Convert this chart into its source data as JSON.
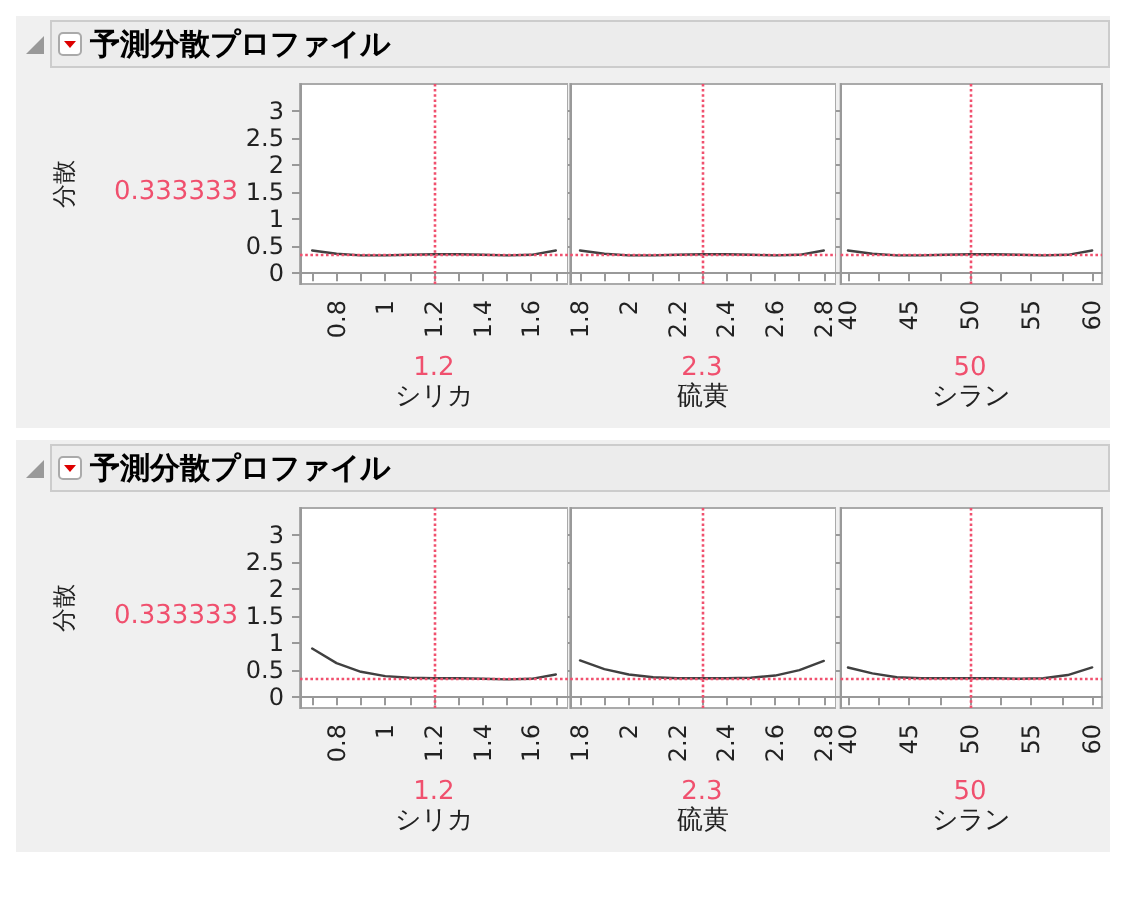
{
  "chart_data": [
    {
      "type": "line",
      "title": "予測分散プロファイル",
      "xlabel": "シリカ",
      "ylabel": "分散",
      "x": [
        0.7,
        0.8,
        0.9,
        1.0,
        1.1,
        1.2,
        1.3,
        1.4,
        1.5,
        1.6,
        1.7
      ],
      "series": [
        {
          "color": "#404040",
          "values": [
            0.42,
            0.36,
            0.33,
            0.33,
            0.34,
            0.35,
            0.35,
            0.34,
            0.33,
            0.34,
            0.42
          ]
        }
      ],
      "xlim": [
        0.65,
        1.75
      ],
      "xticks": [
        {
          "value": 0.7,
          "label": null
        },
        0.8,
        {
          "value": 0.9,
          "label": null
        },
        1,
        {
          "value": 1.1,
          "label": null
        },
        1.2,
        {
          "value": 1.3,
          "label": null
        },
        1.4,
        {
          "value": 1.5,
          "label": null
        },
        1.6,
        {
          "value": 1.7,
          "label": null
        }
      ],
      "ylim": [
        -0.2,
        3.5
      ],
      "yticks": [
        0,
        0.5,
        1,
        1.5,
        2,
        2.5,
        3
      ],
      "grid": false,
      "marker": "none",
      "line_style": "solid",
      "ref_lines": [
        {
          "axis": "x",
          "value": 1.2,
          "label": "1.2",
          "color": "#f0506e",
          "line_style": "dotted"
        },
        {
          "axis": "y",
          "value": 0.333333,
          "label": "0.333333",
          "color": "#f0506e",
          "line_style": "dotted"
        }
      ]
    },
    {
      "type": "line",
      "xlabel": "硫黄",
      "x": [
        1.8,
        1.9,
        2.0,
        2.1,
        2.2,
        2.3,
        2.4,
        2.5,
        2.6,
        2.7,
        2.8
      ],
      "series": [
        {
          "color": "#404040",
          "values": [
            0.42,
            0.36,
            0.33,
            0.33,
            0.34,
            0.35,
            0.35,
            0.34,
            0.33,
            0.34,
            0.42
          ]
        }
      ],
      "xlim": [
        1.76,
        2.85
      ],
      "xticks": [
        1.8,
        {
          "value": 1.9,
          "label": null
        },
        2,
        {
          "value": 2.1,
          "label": null
        },
        2.2,
        {
          "value": 2.3,
          "label": null
        },
        2.4,
        {
          "value": 2.5,
          "label": null
        },
        2.6,
        {
          "value": 2.7,
          "label": null
        },
        2.8
      ],
      "ylim": [
        -0.2,
        3.5
      ],
      "yticks": [
        0,
        0.5,
        1,
        1.5,
        2,
        2.5,
        3
      ],
      "tick_labels": "x",
      "grid": false,
      "marker": "none",
      "line_style": "solid",
      "ref_lines": [
        {
          "axis": "x",
          "value": 2.3,
          "label": "2.3",
          "color": "#f0506e",
          "line_style": "dotted"
        },
        {
          "axis": "y",
          "value": 0.333333,
          "label": null,
          "color": "#f0506e",
          "line_style": "dotted"
        }
      ]
    },
    {
      "type": "line",
      "xlabel": "シラン",
      "x": [
        40,
        42,
        44,
        46,
        48,
        50,
        52,
        54,
        56,
        58,
        60
      ],
      "series": [
        {
          "color": "#404040",
          "values": [
            0.42,
            0.36,
            0.33,
            0.33,
            0.34,
            0.35,
            0.35,
            0.34,
            0.33,
            0.34,
            0.42
          ]
        }
      ],
      "xlim": [
        39.4,
        60.8
      ],
      "xticks": [
        40,
        {
          "value": 42.5,
          "label": null
        },
        45,
        {
          "value": 47.5,
          "label": null
        },
        50,
        {
          "value": 52.5,
          "label": null
        },
        55,
        {
          "value": 57.5,
          "label": null
        },
        60
      ],
      "ylim": [
        -0.2,
        3.5
      ],
      "yticks": [
        0,
        0.5,
        1,
        1.5,
        2,
        2.5,
        3
      ],
      "tick_labels": "x",
      "grid": false,
      "marker": "none",
      "line_style": "solid",
      "ref_lines": [
        {
          "axis": "x",
          "value": 50,
          "label": "50",
          "color": "#f0506e",
          "line_style": "dotted"
        },
        {
          "axis": "y",
          "value": 0.333333,
          "label": null,
          "color": "#f0506e",
          "line_style": "dotted"
        }
      ]
    },
    {
      "type": "line",
      "title": "予測分散プロファイル",
      "xlabel": "シリカ",
      "ylabel": "分散",
      "x": [
        0.7,
        0.8,
        0.9,
        1.0,
        1.1,
        1.2,
        1.3,
        1.4,
        1.5,
        1.6,
        1.7
      ],
      "series": [
        {
          "color": "#404040",
          "values": [
            0.9,
            0.63,
            0.47,
            0.39,
            0.36,
            0.35,
            0.35,
            0.34,
            0.33,
            0.34,
            0.42
          ]
        }
      ],
      "xlim": [
        0.65,
        1.75
      ],
      "xticks": [
        {
          "value": 0.7,
          "label": null
        },
        0.8,
        {
          "value": 0.9,
          "label": null
        },
        1,
        {
          "value": 1.1,
          "label": null
        },
        1.2,
        {
          "value": 1.3,
          "label": null
        },
        1.4,
        {
          "value": 1.5,
          "label": null
        },
        1.6,
        {
          "value": 1.7,
          "label": null
        }
      ],
      "ylim": [
        -0.2,
        3.5
      ],
      "yticks": [
        0,
        0.5,
        1,
        1.5,
        2,
        2.5,
        3
      ],
      "grid": false,
      "marker": "none",
      "line_style": "solid",
      "ref_lines": [
        {
          "axis": "x",
          "value": 1.2,
          "label": "1.2",
          "color": "#f0506e",
          "line_style": "dotted"
        },
        {
          "axis": "y",
          "value": 0.333333,
          "label": "0.333333",
          "color": "#f0506e",
          "line_style": "dotted"
        }
      ]
    },
    {
      "type": "line",
      "xlabel": "硫黄",
      "x": [
        1.8,
        1.9,
        2.0,
        2.1,
        2.2,
        2.3,
        2.4,
        2.5,
        2.6,
        2.7,
        2.8
      ],
      "series": [
        {
          "color": "#404040",
          "values": [
            0.68,
            0.52,
            0.42,
            0.37,
            0.35,
            0.35,
            0.35,
            0.36,
            0.4,
            0.5,
            0.67
          ]
        }
      ],
      "xlim": [
        1.76,
        2.85
      ],
      "xticks": [
        1.8,
        {
          "value": 1.9,
          "label": null
        },
        2,
        {
          "value": 2.1,
          "label": null
        },
        2.2,
        {
          "value": 2.3,
          "label": null
        },
        2.4,
        {
          "value": 2.5,
          "label": null
        },
        2.6,
        {
          "value": 2.7,
          "label": null
        },
        2.8
      ],
      "ylim": [
        -0.2,
        3.5
      ],
      "yticks": [
        0,
        0.5,
        1,
        1.5,
        2,
        2.5,
        3
      ],
      "tick_labels": "x",
      "grid": false,
      "marker": "none",
      "line_style": "solid",
      "ref_lines": [
        {
          "axis": "x",
          "value": 2.3,
          "label": "2.3",
          "color": "#f0506e",
          "line_style": "dotted"
        },
        {
          "axis": "y",
          "value": 0.333333,
          "label": null,
          "color": "#f0506e",
          "line_style": "dotted"
        }
      ]
    },
    {
      "type": "line",
      "xlabel": "シラン",
      "x": [
        40,
        42,
        44,
        46,
        48,
        50,
        52,
        54,
        56,
        58,
        60
      ],
      "series": [
        {
          "color": "#404040",
          "values": [
            0.55,
            0.44,
            0.37,
            0.35,
            0.35,
            0.35,
            0.35,
            0.34,
            0.35,
            0.41,
            0.55
          ]
        }
      ],
      "xlim": [
        39.4,
        60.8
      ],
      "xticks": [
        40,
        {
          "value": 42.5,
          "label": null
        },
        45,
        {
          "value": 47.5,
          "label": null
        },
        50,
        {
          "value": 52.5,
          "label": null
        },
        55,
        {
          "value": 57.5,
          "label": null
        },
        60
      ],
      "ylim": [
        -0.2,
        3.5
      ],
      "yticks": [
        0,
        0.5,
        1,
        1.5,
        2,
        2.5,
        3
      ],
      "tick_labels": "x",
      "grid": false,
      "marker": "none",
      "line_style": "solid",
      "ref_lines": [
        {
          "axis": "x",
          "value": 50,
          "label": "50",
          "color": "#f0506e",
          "line_style": "dotted"
        },
        {
          "axis": "y",
          "value": 0.333333,
          "label": null,
          "color": "#f0506e",
          "line_style": "dotted"
        }
      ]
    }
  ]
}
